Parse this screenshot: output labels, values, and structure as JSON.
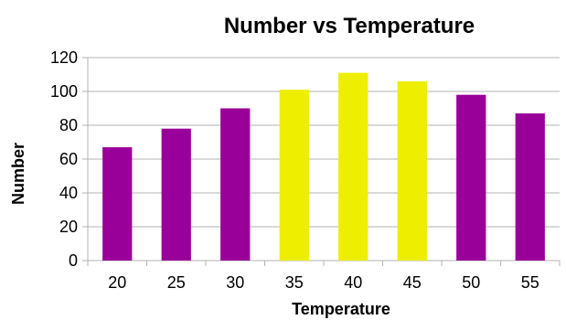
{
  "chart_data": {
    "type": "bar",
    "title": "Number vs Temperature",
    "xlabel": "Temperature",
    "ylabel": "Number",
    "categories": [
      "20",
      "25",
      "30",
      "35",
      "40",
      "45",
      "50",
      "55"
    ],
    "values": [
      67,
      78,
      90,
      101,
      111,
      106,
      98,
      87
    ],
    "bar_colors": [
      "#990099",
      "#990099",
      "#990099",
      "#eeee00",
      "#eeee00",
      "#eeee00",
      "#990099",
      "#990099"
    ],
    "ylim": [
      0,
      120
    ],
    "yticks": [
      0,
      20,
      40,
      60,
      80,
      100,
      120
    ],
    "grid": true,
    "legend": "none"
  },
  "colors": {
    "purple": "#990099",
    "yellow": "#eeee00",
    "grid": "#b3b3b3"
  }
}
